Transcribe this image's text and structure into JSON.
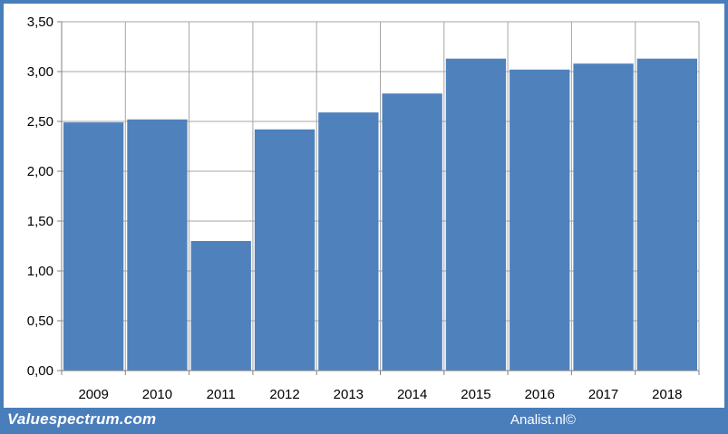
{
  "chart_data": {
    "type": "bar",
    "categories": [
      "2009",
      "2010",
      "2011",
      "2012",
      "2013",
      "2014",
      "2015",
      "2016",
      "2017",
      "2018"
    ],
    "values": [
      2.49,
      2.52,
      1.3,
      2.42,
      2.59,
      2.78,
      3.13,
      3.02,
      3.08,
      3.13
    ],
    "y_ticks": [
      "0,00",
      "0,50",
      "1,00",
      "1,50",
      "2,00",
      "2,50",
      "3,00",
      "3,50"
    ],
    "ylim": [
      0,
      3.5
    ],
    "grid": true,
    "bar_color": "#4f81bd",
    "grid_color": "#a6a6a6"
  },
  "footer": {
    "brand_left": "Valuespectrum.com",
    "brand_right": "Analist.nl©",
    "background": "#4a7ebb"
  }
}
